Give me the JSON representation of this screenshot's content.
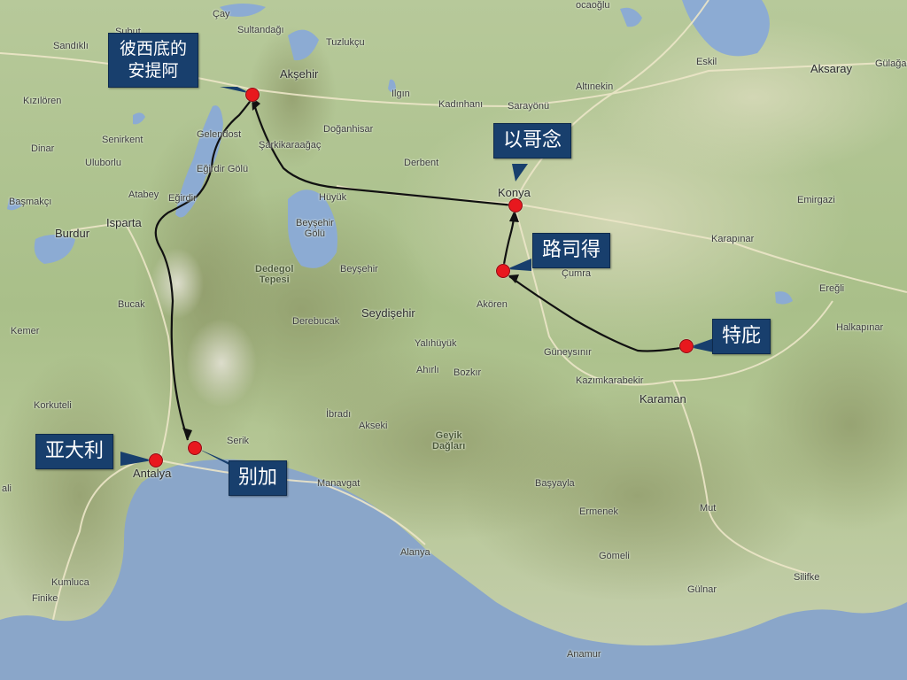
{
  "map": {
    "region": "Southern Anatolia",
    "colors": {
      "sea": "#8aa6c9",
      "lake": "#8cabd3",
      "land": "#b3c591",
      "route": "#111111",
      "pin": "#e8181e",
      "callout": "#183f6d"
    },
    "callouts": [
      {
        "id": "antioch",
        "label": "彼西底的\n安提阿"
      },
      {
        "id": "iconium",
        "label": "以哥念"
      },
      {
        "id": "lystra",
        "label": "路司得"
      },
      {
        "id": "derbe",
        "label": "特庇"
      },
      {
        "id": "attalia",
        "label": "亚大利"
      },
      {
        "id": "perga",
        "label": "别加"
      }
    ],
    "places": {
      "cay": "Çay",
      "subut": "Subut",
      "sandikli": "Sandıklı",
      "sultandagi": "Sultandağı",
      "tuzlukcu": "Tuzlukçu",
      "aksehir": "Akşehir",
      "kiziloren": "Kızılören",
      "ilgin": "Ilgın",
      "kadinhani": "Kadınhanı",
      "sarayonu": "Sarayönü",
      "altinekin": "Altınekin",
      "eskil": "Eskil",
      "aksaray": "Aksaray",
      "gulagac": "Gülağaç",
      "gelendost": "Gelendost",
      "doganhisar": "Doğanhisar",
      "senirkent": "Senirkent",
      "sarkikaraagac": "Şarkikaraağaç",
      "dinar": "Dinar",
      "uluborlu": "Uluborlu",
      "egirdir_golu": "Eğirdir Gölü",
      "derbent": "Derbent",
      "konya": "Konya",
      "atabey": "Atabey",
      "egirdir": "Eğirdir",
      "huyuk": "Hüyük",
      "emirgazi": "Emirgazi",
      "basmakci": "Başmakçı",
      "isparta": "Isparta",
      "burdur": "Burdur",
      "beysehir_golu": "Beyşehir\nGölü",
      "karapinar": "Karapınar",
      "dedegol": "Dedegol\nTepesi",
      "beysehir": "Beyşehir",
      "cumra": "Çumra",
      "eregli": "Ereğli",
      "bucak": "Bucak",
      "seydisehir": "Seydişehir",
      "derebucak": "Derebucak",
      "akoren": "Akören",
      "halkapinar": "Halkapınar",
      "kemer": "Kemer",
      "yalihuyuk": "Yalıhüyük",
      "guneysinir": "Güneysınır",
      "ahirli": "Ahırlı",
      "bozkir": "Bozkır",
      "kazimkarabekir": "Kazımkarabekir",
      "karaman": "Karaman",
      "korkuteli": "Korkuteli",
      "ibradi": "İbradı",
      "akseki": "Akseki",
      "geyik": "Geyik\nDağları",
      "serik": "Serik",
      "antalya": "Antalya",
      "manavgat": "Manavgat",
      "basyayla": "Başyayla",
      "ermenek": "Ermenek",
      "mut": "Mut",
      "alanya": "Alanya",
      "gormeli": "Gömeli",
      "silifke": "Silifke",
      "gulnar": "Gülnar",
      "kumluca": "Kumluca",
      "finike": "Finike",
      "anamur": "Anamur",
      "ali": "ali",
      "ocaoglu": "ocaoğlu"
    }
  }
}
